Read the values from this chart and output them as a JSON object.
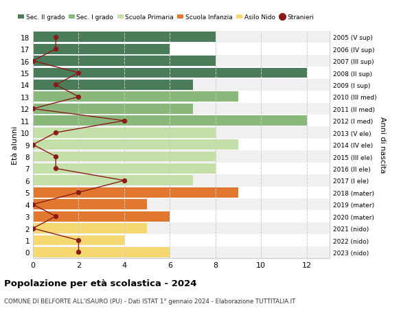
{
  "ages": [
    18,
    17,
    16,
    15,
    14,
    13,
    12,
    11,
    10,
    9,
    8,
    7,
    6,
    5,
    4,
    3,
    2,
    1,
    0
  ],
  "years": [
    "2005 (V sup)",
    "2006 (IV sup)",
    "2007 (III sup)",
    "2008 (II sup)",
    "2009 (I sup)",
    "2010 (III med)",
    "2011 (II med)",
    "2012 (I med)",
    "2013 (V ele)",
    "2014 (IV ele)",
    "2015 (III ele)",
    "2016 (II ele)",
    "2017 (I ele)",
    "2018 (mater)",
    "2019 (mater)",
    "2020 (mater)",
    "2021 (nido)",
    "2022 (nido)",
    "2023 (nido)"
  ],
  "bar_values": [
    8,
    6,
    8,
    12,
    7,
    9,
    7,
    12,
    8,
    9,
    8,
    8,
    7,
    9,
    5,
    6,
    5,
    4,
    6
  ],
  "bar_colors": [
    "#4a7c59",
    "#4a7c59",
    "#4a7c59",
    "#4a7c59",
    "#4a7c59",
    "#8ab87a",
    "#8ab87a",
    "#8ab87a",
    "#c5dfa8",
    "#c5dfa8",
    "#c5dfa8",
    "#c5dfa8",
    "#c5dfa8",
    "#e07830",
    "#e07830",
    "#e07830",
    "#f5d870",
    "#f5d870",
    "#f5d870"
  ],
  "stranieri_values": [
    1,
    1,
    0,
    2,
    1,
    2,
    0,
    4,
    1,
    0,
    1,
    1,
    4,
    2,
    0,
    1,
    0,
    2,
    2
  ],
  "title": "Popolazione per età scolastica - 2024",
  "subtitle": "COMUNE DI BELFORTE ALL'ISAURO (PU) - Dati ISTAT 1° gennaio 2024 - Elaborazione TUTTITALIA.IT",
  "ylabel_left": "Età alunni",
  "ylabel_right": "Anni di nascita",
  "xlim": [
    0,
    13
  ],
  "bg_color": "#ffffff",
  "grid_color": "#cccccc",
  "stripe_color_even": "#f0f0f0",
  "stripe_color_odd": "#ffffff",
  "legend_labels": [
    "Sec. II grado",
    "Sec. I grado",
    "Scuola Primaria",
    "Scuola Infanzia",
    "Asilo Nido",
    "Stranieri"
  ],
  "legend_colors": [
    "#4a7c59",
    "#8ab87a",
    "#c5dfa8",
    "#e07830",
    "#f5d870",
    "#8b1a1a"
  ],
  "stranieri_line_color": "#8b1a1a",
  "bar_height": 0.85
}
